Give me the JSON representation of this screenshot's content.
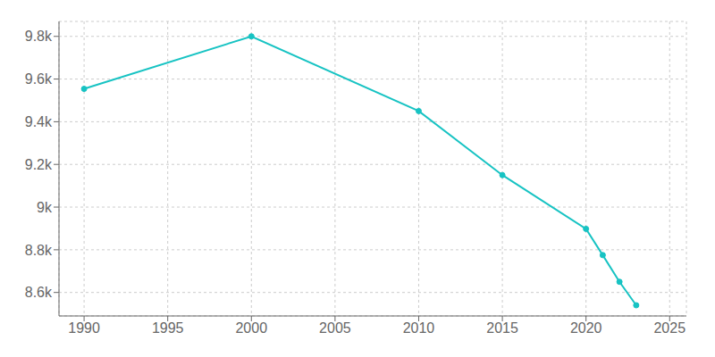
{
  "chart_data": {
    "type": "line",
    "x": [
      1990,
      2000,
      2010,
      2015,
      2020,
      2021,
      2022,
      2023
    ],
    "values": [
      9554,
      9800,
      9450,
      9150,
      8898,
      8775,
      8650,
      8540
    ],
    "color": "#17C3C3",
    "marker": "circle",
    "xlim": [
      1988.5,
      2026
    ],
    "ylim": [
      8490,
      9870
    ],
    "xticks": [
      1990,
      1995,
      2000,
      2005,
      2010,
      2015,
      2020,
      2025
    ],
    "yticks": [
      {
        "value": 8600,
        "label": "8.6k"
      },
      {
        "value": 8800,
        "label": "8.8k"
      },
      {
        "value": 9000,
        "label": "9k"
      },
      {
        "value": 9200,
        "label": "9.2k"
      },
      {
        "value": 9400,
        "label": "9.4k"
      },
      {
        "value": 9600,
        "label": "9.6k"
      },
      {
        "value": 9800,
        "label": "9.8k"
      }
    ],
    "grid": true
  }
}
